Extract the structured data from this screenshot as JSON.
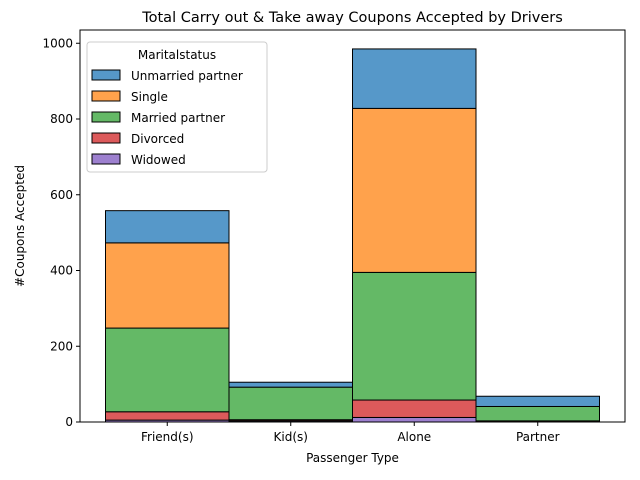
{
  "chart_data": {
    "type": "bar",
    "stacked": true,
    "title": "Total Carry out & Take away Coupons Accepted by Drivers",
    "xlabel": "Passenger Type",
    "ylabel": "#Coupons Accepted",
    "categories": [
      "Friend(s)",
      "Kid(s)",
      "Alone",
      "Partner"
    ],
    "ylim": [
      0,
      1035
    ],
    "yticks": [
      0,
      200,
      400,
      600,
      800,
      1000
    ],
    "legend": {
      "title": "Maritalstatus",
      "placement": "top-left",
      "order": [
        "Unmarried partner",
        "Single",
        "Married partner",
        "Divorced",
        "Widowed"
      ]
    },
    "series": [
      {
        "name": "Widowed",
        "color": "#9d80cf",
        "values": [
          5,
          3,
          12,
          0
        ]
      },
      {
        "name": "Divorced",
        "color": "#dc5a5b",
        "values": [
          22,
          3,
          46,
          3
        ]
      },
      {
        "name": "Married partner",
        "color": "#64b966",
        "values": [
          221,
          86,
          337,
          38
        ]
      },
      {
        "name": "Single",
        "color": "#ffa24c",
        "values": [
          225,
          0,
          433,
          0
        ]
      },
      {
        "name": "Unmarried partner",
        "color": "#5698c9",
        "values": [
          85,
          13,
          157,
          27
        ]
      }
    ]
  }
}
